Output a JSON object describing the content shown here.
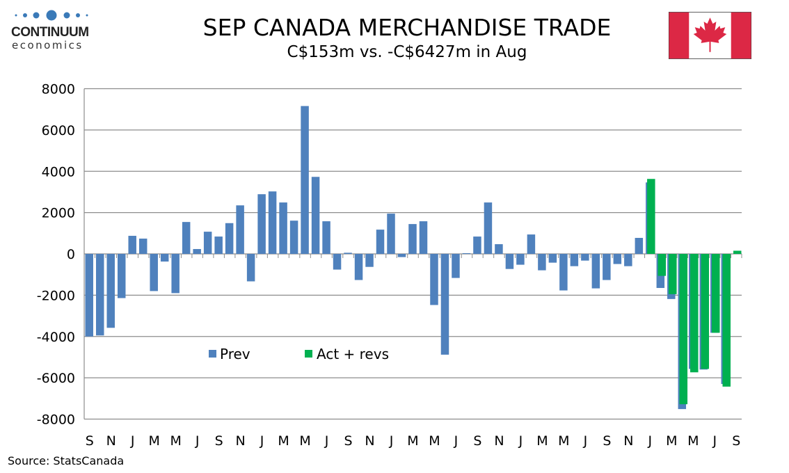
{
  "logo": {
    "name": "CONTINUUM",
    "sub": "economics"
  },
  "header": {
    "title": "SEP CANADA MERCHANDISE TRADE",
    "subtitle": "C$153m vs. -C$6427m in Aug"
  },
  "source": "Source: StatsCanada",
  "colors": {
    "prev": "#4f81bd",
    "act": "#00b050",
    "flag_red": "#dc2845",
    "grid": "#8c8c8c"
  },
  "chart_data": {
    "type": "bar",
    "title": "SEP CANADA MERCHANDISE TRADE",
    "subtitle": "C$153m vs. -C$6427m in Aug",
    "xlabel": "",
    "ylabel": "",
    "ylim": [
      -8000,
      8000
    ],
    "yticks": [
      8000,
      6000,
      4000,
      2000,
      0,
      -2000,
      -4000,
      -6000,
      -8000
    ],
    "xtick_labels": [
      "S",
      "N",
      "J",
      "M",
      "M",
      "J",
      "S",
      "N",
      "J",
      "M",
      "M",
      "J",
      "S",
      "N",
      "J",
      "M",
      "M",
      "J",
      "S",
      "N",
      "J",
      "M",
      "M",
      "J",
      "S",
      "N",
      "J",
      "M",
      "M",
      "J",
      "S"
    ],
    "grid": true,
    "legend": {
      "placement": "bottom-center",
      "entries": [
        "Prev",
        "Act + revs"
      ]
    },
    "series": [
      {
        "name": "Prev",
        "values": [
          -4000,
          -3950,
          -3580,
          -2140,
          875,
          740,
          -1800,
          -370,
          -1900,
          1545,
          235,
          1075,
          840,
          1490,
          2350,
          -1330,
          2890,
          3025,
          2490,
          1610,
          7160,
          3730,
          1580,
          -760,
          55,
          -1265,
          -630,
          1175,
          1950,
          -155,
          1445,
          1580,
          -2475,
          -4880,
          -1165,
          35,
          840,
          2490,
          470,
          -730,
          -525,
          940,
          -795,
          -425,
          -1770,
          -595,
          -325,
          -1670,
          -1265,
          -490,
          -595,
          775,
          3460,
          -1650,
          -2185,
          -7515,
          -5570,
          -5600,
          -3820,
          -6300,
          null
        ]
      },
      {
        "name": "Act + revs",
        "values": [
          null,
          null,
          null,
          null,
          null,
          null,
          null,
          null,
          null,
          null,
          null,
          null,
          null,
          null,
          null,
          null,
          null,
          null,
          null,
          null,
          null,
          null,
          null,
          null,
          null,
          null,
          null,
          null,
          null,
          null,
          null,
          null,
          null,
          null,
          null,
          null,
          null,
          null,
          null,
          null,
          null,
          null,
          null,
          null,
          null,
          null,
          null,
          null,
          null,
          null,
          null,
          null,
          3630,
          -1065,
          -1950,
          -7280,
          -5735,
          -5570,
          -3820,
          -6427,
          153
        ]
      }
    ]
  }
}
